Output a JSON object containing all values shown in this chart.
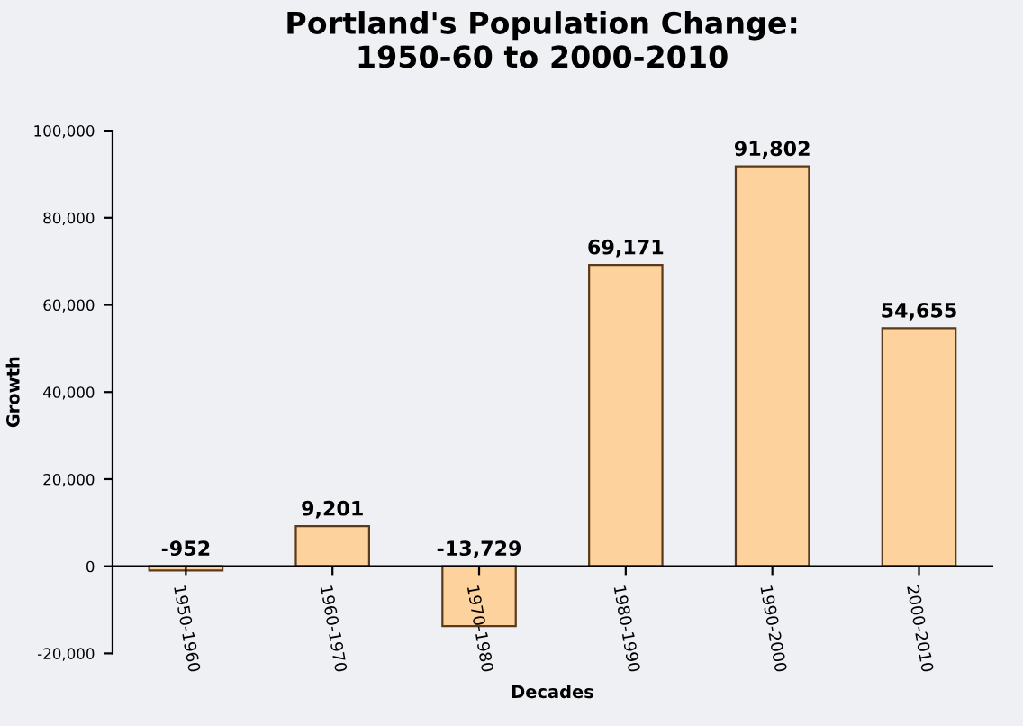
{
  "chart_data": {
    "type": "bar",
    "title": "Portland's Population Change:\n1950-60 to 2000-2010",
    "xlabel": "Decades",
    "ylabel": "Growth",
    "categories": [
      "1950-1960",
      "1960-1970",
      "1970-1980",
      "1980-1990",
      "1990-2000",
      "2000-2010"
    ],
    "values": [
      -952,
      9201,
      -13729,
      69171,
      91802,
      54655
    ],
    "color": "#fdd29c",
    "ylim": [
      -20000,
      100000
    ],
    "yticks": [
      {
        "value": -20000,
        "label": "-20,000"
      },
      {
        "value": 0,
        "label": "0"
      },
      {
        "value": 20000,
        "label": "20,000"
      },
      {
        "value": 40000,
        "label": "40,000"
      },
      {
        "value": 60000,
        "label": "60,000"
      },
      {
        "value": 80000,
        "label": "80,000"
      },
      {
        "value": 100000,
        "label": "100,000"
      }
    ],
    "value_labels": [
      "-952",
      "9,201",
      "-13,729",
      "69,171",
      "91,802",
      "54,655"
    ],
    "grid": false,
    "legend": false
  }
}
